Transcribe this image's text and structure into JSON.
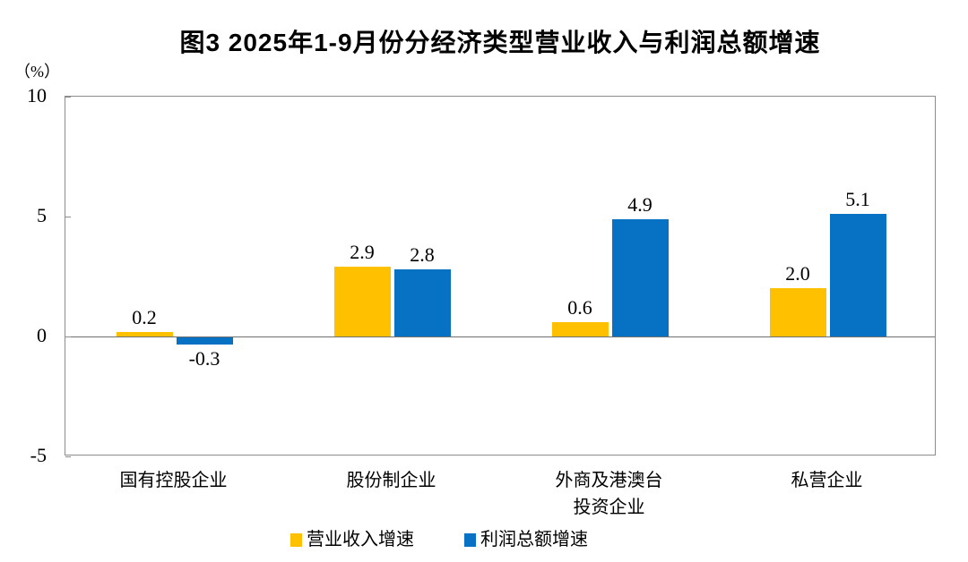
{
  "figure": {
    "title": "图3 2025年1-9月份分经济类型营业收入与利润总额增速",
    "unit_label": "（%）"
  },
  "chart_data": {
    "type": "bar",
    "title": "图3 2025年1-9月份分经济类型营业收入与利润总额增速",
    "ylabel": "（%）",
    "xlabel": "",
    "ylim": [
      -5,
      10
    ],
    "yticks": [
      10,
      5,
      0,
      -5
    ],
    "grid": false,
    "legend_position": "bottom",
    "value_label_decimals": 1,
    "categories": [
      "国有控股企业",
      "股份制企业",
      "外商及港澳台\n投资企业",
      "私营企业"
    ],
    "series": [
      {
        "name": "营业收入增速",
        "color": "#FFC000",
        "values": [
          0.2,
          2.9,
          0.6,
          2.0
        ]
      },
      {
        "name": "利润总额增速",
        "color": "#0772C4",
        "values": [
          -0.3,
          2.8,
          4.9,
          5.1
        ]
      }
    ]
  },
  "colors": {
    "plot_border": "#8c8c8c",
    "zero_line": "#707070",
    "text": "#000000",
    "background": "#ffffff"
  }
}
